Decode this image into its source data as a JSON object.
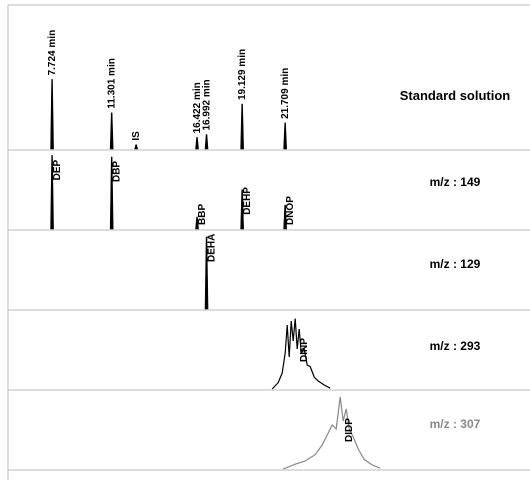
{
  "chart_data": {
    "type": "chromatogram",
    "xlim": [
      5.08,
      36.4
    ],
    "ylim": [
      0,
      100
    ],
    "panels": [
      {
        "label": "Standard solution",
        "color": "#000000",
        "peaks": [
          {
            "x": 7.724,
            "height": 48,
            "label": "7.724 min"
          },
          {
            "x": 11.301,
            "height": 25,
            "label": "11.301 min"
          },
          {
            "x": 12.77,
            "height": 3,
            "label": "IS"
          },
          {
            "x": 16.422,
            "height": 8,
            "label": "16.422 min"
          },
          {
            "x": 16.992,
            "height": 10,
            "label": "16.992 min"
          },
          {
            "x": 19.129,
            "height": 31,
            "label": "19.129 min"
          },
          {
            "x": 21.709,
            "height": 18,
            "label": "21.709 min"
          }
        ]
      },
      {
        "label": "m/z : 149",
        "color": "#000000",
        "peaks": [
          {
            "x": 7.724,
            "height": 92,
            "label": "DEP"
          },
          {
            "x": 11.301,
            "height": 90,
            "label": "DBP"
          },
          {
            "x": 16.422,
            "height": 15,
            "label": "BBP"
          },
          {
            "x": 19.129,
            "height": 49,
            "label": "DEHP"
          },
          {
            "x": 21.709,
            "height": 30,
            "label": "DNOP"
          }
        ]
      },
      {
        "label": "m/z : 129",
        "color": "#000000",
        "peaks": [
          {
            "x": 16.992,
            "height": 90,
            "label": "DEHA"
          }
        ]
      },
      {
        "label": "m/z : 293",
        "color": "#000000",
        "trace": {
          "label": "DINP",
          "x": [
            20.93,
            21.29,
            21.53,
            21.71,
            21.83,
            21.95,
            22.07,
            22.19,
            22.31,
            22.43,
            22.55,
            22.67,
            22.85,
            23.03,
            23.21,
            23.45,
            23.69,
            24.05,
            24.41
          ],
          "values": [
            0,
            8,
            20,
            45,
            80,
            40,
            85,
            60,
            88,
            50,
            75,
            45,
            50,
            30,
            28,
            15,
            10,
            5,
            1
          ]
        }
      },
      {
        "label": "m/z : 307",
        "color": "#888888",
        "trace": {
          "label": "DIDP",
          "x": [
            21.59,
            22.31,
            22.91,
            23.51,
            23.93,
            24.29,
            24.53,
            24.77,
            25.01,
            25.19,
            25.37,
            25.55,
            25.79,
            26.09,
            26.45,
            26.93,
            27.41
          ],
          "values": [
            0,
            6,
            10,
            18,
            30,
            45,
            55,
            50,
            90,
            60,
            75,
            50,
            40,
            25,
            12,
            5,
            1
          ]
        }
      }
    ]
  }
}
